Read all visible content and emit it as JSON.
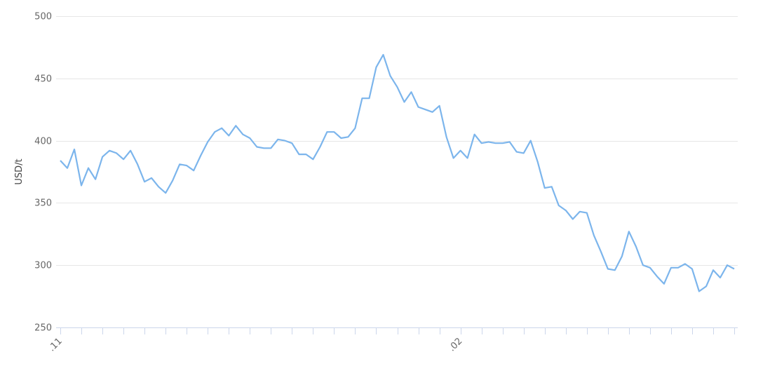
{
  "chart_data": {
    "type": "line",
    "title": "",
    "xlabel": "",
    "ylabel": "USD/t",
    "ylim": [
      250,
      500
    ],
    "yticks": [
      250,
      300,
      350,
      400,
      450,
      500
    ],
    "grid": true,
    "legend": "none",
    "line_color": "#7cb5ec",
    "x_tick_every": 3,
    "x_labels": [
      {
        "index": 0,
        "label": ".11"
      },
      {
        "index": 57,
        "label": ".02"
      }
    ],
    "values": [
      384,
      378,
      393,
      364,
      378,
      369,
      387,
      392,
      390,
      385,
      392,
      381,
      367,
      370,
      363,
      358,
      368,
      381,
      380,
      376,
      388,
      399,
      407,
      410,
      404,
      412,
      405,
      402,
      395,
      394,
      394,
      401,
      400,
      398,
      389,
      389,
      385,
      395,
      407,
      407,
      402,
      403,
      410,
      434,
      434,
      459,
      469,
      452,
      443,
      431,
      439,
      427,
      425,
      423,
      428,
      403,
      386,
      392,
      386,
      405,
      398,
      399,
      398,
      398,
      399,
      391,
      390,
      400,
      383,
      362,
      363,
      348,
      344,
      337,
      343,
      342,
      324,
      311,
      297,
      296,
      307,
      327,
      315,
      300,
      298,
      291,
      285,
      298,
      298,
      301,
      297,
      279,
      283,
      296,
      290,
      300,
      297
    ]
  }
}
